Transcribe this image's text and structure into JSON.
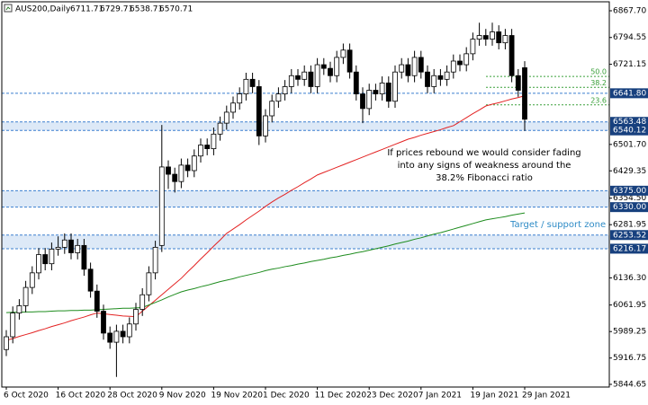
{
  "chart_data": {
    "type": "candlestick",
    "symbol": "AUS200,Daily",
    "ohlc": [
      6711.71,
      6729.71,
      6538.71,
      6570.71
    ],
    "categories": [
      "6 Oct 2020",
      null,
      null,
      null,
      null,
      null,
      null,
      null,
      "16 Oct 2020",
      null,
      null,
      null,
      null,
      null,
      null,
      null,
      "28 Oct 2020",
      null,
      null,
      null,
      null,
      null,
      null,
      null,
      "9 Nov 2020",
      null,
      null,
      null,
      null,
      null,
      null,
      null,
      "19 Nov 2020",
      null,
      null,
      null,
      null,
      null,
      null,
      null,
      "1 Dec 2020",
      null,
      null,
      null,
      null,
      null,
      null,
      null,
      "11 Dec 2020",
      null,
      null,
      null,
      null,
      null,
      null,
      null,
      "23 Dec 2020",
      null,
      null,
      null,
      null,
      null,
      null,
      null,
      "7 Jan 2021",
      null,
      null,
      null,
      null,
      null,
      null,
      null,
      "19 Jan 2021",
      null,
      null,
      null,
      null,
      null,
      null,
      null,
      "29 Jan 2021"
    ],
    "open": [
      5940,
      5975,
      6040,
      6060,
      6110,
      6150,
      6200,
      6175,
      6215,
      6220,
      6240,
      6205,
      6225,
      6160,
      6100,
      6045,
      5985,
      5960,
      5990,
      5975,
      6010,
      6050,
      6090,
      6150,
      6225,
      6440,
      6420,
      6400,
      6445,
      6430,
      6470,
      6500,
      6490,
      6530,
      6560,
      6590,
      6615,
      6640,
      6680,
      6660,
      6525,
      6580,
      6620,
      6640,
      6660,
      6690,
      6680,
      6700,
      6660,
      6720,
      6710,
      6690,
      6740,
      6760,
      6700,
      6640,
      6600,
      6650,
      6640,
      6670,
      6620,
      6700,
      6720,
      6690,
      6740,
      6700,
      6660,
      6690,
      6680,
      6700,
      6730,
      6720,
      6750,
      6790,
      6800,
      6790,
      6810,
      6780,
      6800,
      6690,
      6711.71
    ],
    "high": [
      5993,
      6058,
      6078,
      6128,
      6168,
      6218,
      6218,
      6233,
      6250,
      6258,
      6258,
      6243,
      6243,
      6178,
      6118,
      6063,
      6003,
      6008,
      6008,
      6028,
      6068,
      6108,
      6168,
      6238,
      6555,
      6458,
      6438,
      6463,
      6463,
      6488,
      6518,
      6518,
      6548,
      6578,
      6608,
      6633,
      6658,
      6698,
      6698,
      6678,
      6598,
      6638,
      6658,
      6678,
      6708,
      6708,
      6718,
      6718,
      6738,
      6738,
      6728,
      6758,
      6778,
      6778,
      6718,
      6658,
      6668,
      6668,
      6688,
      6688,
      6718,
      6738,
      6738,
      6758,
      6758,
      6718,
      6708,
      6708,
      6718,
      6748,
      6748,
      6768,
      6808,
      6835,
      6818,
      6835,
      6828,
      6818,
      6818,
      6708,
      6729.71
    ],
    "low": [
      5922,
      5957,
      6022,
      6042,
      6092,
      6132,
      6157,
      6157,
      6197,
      6202,
      6187,
      6187,
      6142,
      6082,
      6027,
      5967,
      5942,
      5865,
      5957,
      5957,
      5992,
      6032,
      6072,
      6132,
      6207,
      6380,
      6370,
      6382,
      6412,
      6412,
      6452,
      6472,
      6472,
      6512,
      6542,
      6572,
      6597,
      6622,
      6642,
      6500,
      6507,
      6562,
      6602,
      6622,
      6642,
      6662,
      6662,
      6642,
      6642,
      6692,
      6672,
      6672,
      6722,
      6682,
      6622,
      6560,
      6582,
      6622,
      6622,
      6602,
      6602,
      6682,
      6672,
      6672,
      6682,
      6642,
      6642,
      6662,
      6662,
      6682,
      6702,
      6702,
      6732,
      6772,
      6772,
      6772,
      6762,
      6762,
      6672,
      6632,
      6538.71
    ],
    "close": [
      5975,
      6040,
      6060,
      6110,
      6150,
      6200,
      6175,
      6215,
      6220,
      6240,
      6205,
      6225,
      6160,
      6100,
      6045,
      5985,
      5960,
      5990,
      5975,
      6010,
      6050,
      6090,
      6150,
      6220,
      6440,
      6420,
      6400,
      6445,
      6430,
      6470,
      6500,
      6490,
      6530,
      6560,
      6590,
      6615,
      6640,
      6680,
      6660,
      6525,
      6580,
      6620,
      6640,
      6660,
      6690,
      6680,
      6700,
      6660,
      6720,
      6710,
      6690,
      6740,
      6760,
      6700,
      6640,
      6600,
      6650,
      6640,
      6670,
      6620,
      6700,
      6720,
      6690,
      6740,
      6700,
      6660,
      6690,
      6680,
      6700,
      6730,
      6720,
      6750,
      6790,
      6800,
      6790,
      6810,
      6780,
      6800,
      6690,
      6650,
      6570.71
    ],
    "moving_averages": [
      {
        "color": "#e32222",
        "values": [
          5965,
          5970,
          5976,
          5981,
          5986,
          5992,
          5997,
          6003,
          6008,
          6013,
          6019,
          6024,
          6029,
          6035,
          6040,
          6038,
          6036,
          6034,
          6032,
          6031,
          6030,
          6045,
          6060,
          6075,
          6090,
          6105,
          6120,
          6135,
          6153,
          6170,
          6188,
          6205,
          6223,
          6240,
          6258,
          6270,
          6282,
          6295,
          6307,
          6319,
          6332,
          6344,
          6355,
          6365,
          6376,
          6386,
          6397,
          6407,
          6418,
          6425,
          6432,
          6439,
          6446,
          6453,
          6460,
          6467,
          6474,
          6481,
          6488,
          6495,
          6502,
          6509,
          6516,
          6521,
          6527,
          6532,
          6537,
          6542,
          6548,
          6553,
          6564,
          6575,
          6586,
          6596,
          6607,
          6612,
          6616,
          6621,
          6626,
          6630,
          6635
        ]
      },
      {
        "color": "#1e8c1e",
        "values": [
          6041,
          6042,
          6042,
          6043,
          6043,
          6044,
          6044,
          6045,
          6046,
          6046,
          6047,
          6047,
          6048,
          6048,
          6049,
          6050,
          6051,
          6052,
          6053,
          6053,
          6054,
          6055,
          6062,
          6069,
          6076,
          6084,
          6091,
          6098,
          6103,
          6107,
          6112,
          6116,
          6121,
          6126,
          6130,
          6134,
          6139,
          6143,
          6147,
          6151,
          6156,
          6160,
          6163,
          6167,
          6170,
          6174,
          6177,
          6181,
          6184,
          6187,
          6191,
          6194,
          6198,
          6201,
          6205,
          6208,
          6212,
          6216,
          6220,
          6224,
          6229,
          6233,
          6237,
          6242,
          6246,
          6251,
          6256,
          6260,
          6265,
          6270,
          6275,
          6280,
          6285,
          6290,
          6295,
          6298,
          6301,
          6304,
          6308,
          6311,
          6314
        ]
      }
    ],
    "ylim": [
      5837.3,
      6892.3
    ],
    "yticks": [
      {
        "value": 6867.7,
        "label": "6867.70"
      },
      6794.55,
      6721.15,
      {
        "value": 6501.7,
        "label": "6501.70"
      },
      6429.35,
      {
        "value": 6354.5,
        "label": "6354.50"
      },
      6281.95,
      {
        "value": 6136.3,
        "label": "6136.30"
      },
      6061.95,
      5989.25,
      5916.75,
      5844.65
    ],
    "levels": [
      {
        "value": 6641.8,
        "label": "6641.80"
      }
    ],
    "zones": [
      [
        6563.48,
        6540.12
      ],
      [
        {
          "value": 6375,
          "label": "6375.00"
        },
        {
          "value": 6330,
          "label": "6330.00"
        }
      ],
      [
        6253.52,
        6216.17
      ]
    ],
    "fibonacci": [
      {
        "label": "50.0",
        "price": 6688
      },
      {
        "label": "38.2",
        "price": 6658
      },
      {
        "label": "23.6",
        "price": 6610
      }
    ],
    "annotation": [
      "If prices rebound we would consider fading",
      "into any signs of weakness around the",
      "38.2% Fibonacci ratio"
    ],
    "zone_label": "Target / support zone"
  }
}
